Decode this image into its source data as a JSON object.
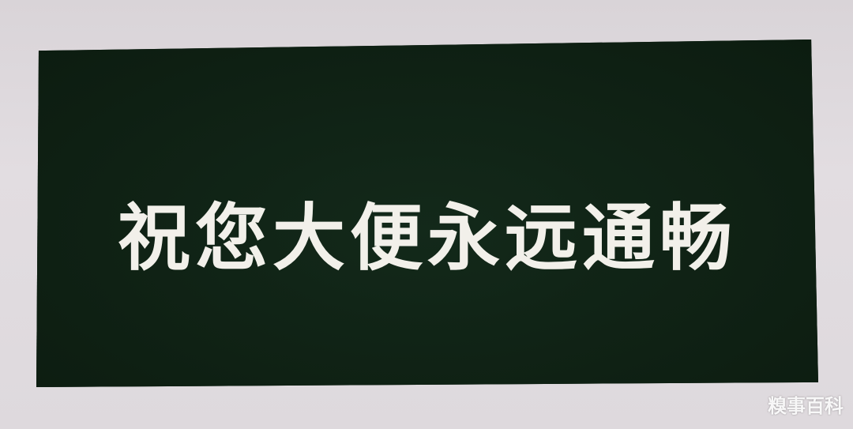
{
  "sign": {
    "text": "祝您大便永远通畅",
    "background_color": "#102314",
    "text_color": "#f2f0ea"
  },
  "watermark": {
    "text": "糗事百科"
  }
}
